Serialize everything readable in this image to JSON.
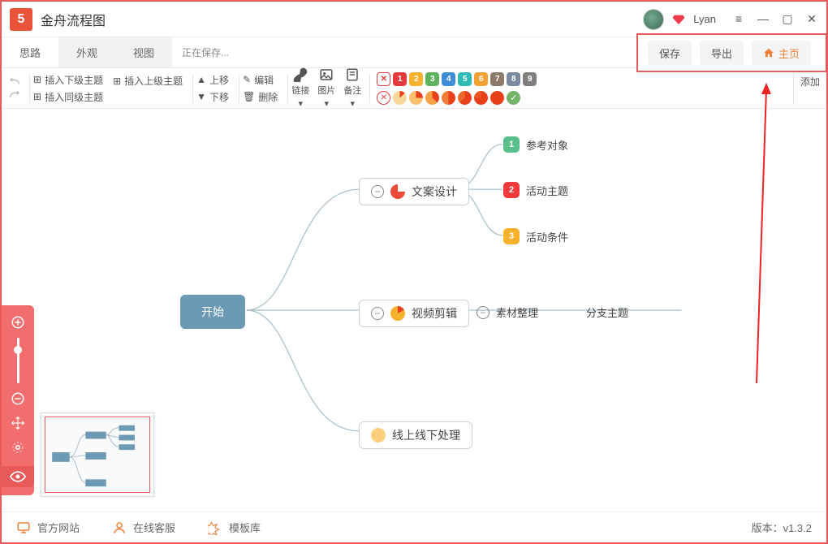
{
  "app": {
    "title": "金舟流程图",
    "saving": "正在保存...",
    "username": "Lyan"
  },
  "tabs": {
    "t1": "思路",
    "t2": "外观",
    "t3": "视图"
  },
  "actions": {
    "save": "保存",
    "export": "导出",
    "home": "主页"
  },
  "toolbar": {
    "insert_child": "插入下级主题",
    "insert_parent": "插入上级主题",
    "insert_sibling": "插入同级主题",
    "move_up": "上移",
    "move_down": "下移",
    "edit": "编辑",
    "delete": "删除",
    "link": "链接",
    "image": "图片",
    "note": "备注",
    "add": "添加"
  },
  "priorities": {
    "colors": [
      "#e43b3e",
      "#f7b12c",
      "#5fb25f",
      "#3f8dd6",
      "#2fbab3",
      "#f3a035",
      "#8e7a6b",
      "#7a8aa0",
      "#7f7f7f"
    ],
    "labels": [
      "1",
      "2",
      "3",
      "4",
      "5",
      "6",
      "7",
      "8",
      "9"
    ]
  },
  "progress_colors": [
    "#f9d99a",
    "#fbbf6d",
    "#f59f46",
    "#f07e38",
    "#ee6a2c",
    "#ec5522",
    "#e9401b",
    "#75b36a"
  ],
  "mindmap": {
    "start": "开始",
    "n1": "文案设计",
    "n2": "视频剪辑",
    "n3": "线上线下处理",
    "l1": "参考对象",
    "l2": "活动主题",
    "l3": "活动条件",
    "l4": "素材整理",
    "l5": "分支主题",
    "badge_colors": {
      "b1": "#59c08c",
      "b2": "#ee3a3d",
      "b3": "#f7b12c"
    },
    "icon_colors": {
      "n1": "#ee4a3a",
      "n2": "#f7b12c",
      "n3": "#fbcf7e"
    }
  },
  "footer": {
    "site": "官方网站",
    "service": "在线客服",
    "templates": "模板库",
    "version_label": "版本：",
    "version": "v1.3.2"
  }
}
